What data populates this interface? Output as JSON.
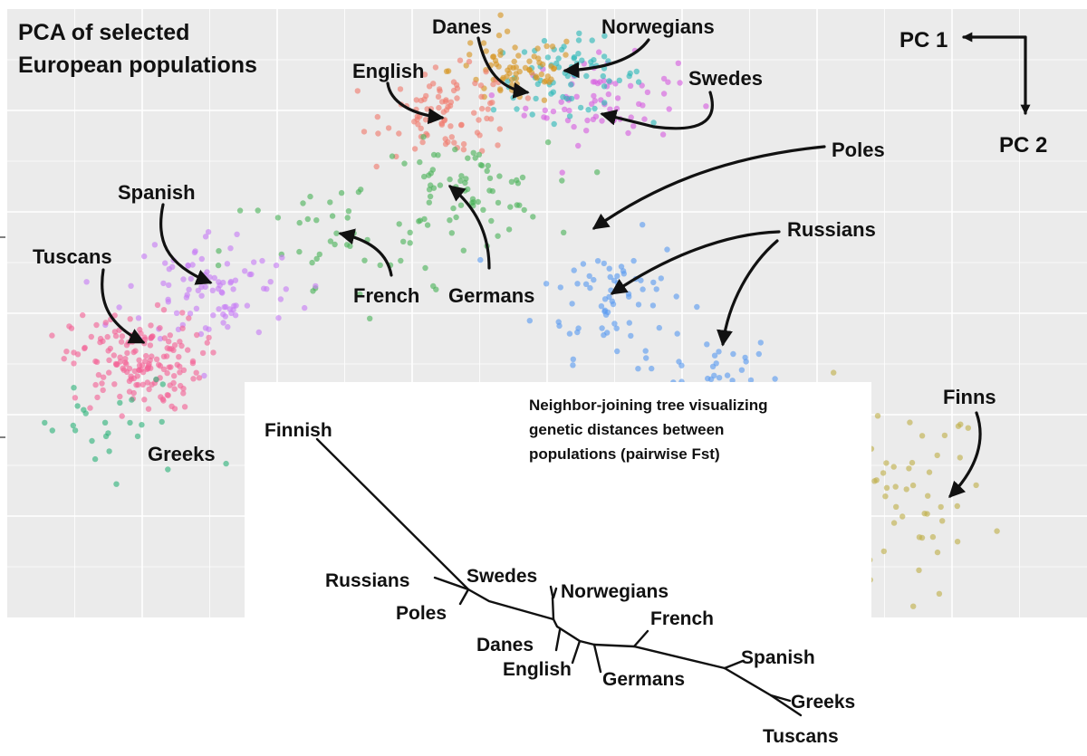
{
  "chart_data": [
    {
      "type": "scatter",
      "title": "PCA of selected European populations",
      "title_lines": [
        "PCA of selected",
        "European populations"
      ],
      "xlabel": "",
      "ylabel": "",
      "xlim": [
        0,
        1
      ],
      "ylim": [
        0,
        1
      ],
      "grid": true,
      "background": "#ebebeb",
      "legend": "none",
      "axes_note": {
        "pc1": "PC 1",
        "pc2": "PC 2"
      },
      "series": [
        {
          "name": "Finns",
          "color": "#c0b04a",
          "center": [
            0.8,
            0.19
          ],
          "spread": [
            0.055,
            0.085
          ],
          "n": 95,
          "jitter": 0.012
        },
        {
          "name": "Russians",
          "color": "#5b9bf0",
          "center": [
            0.645,
            0.4
          ],
          "spread": [
            0.035,
            0.035
          ],
          "n": 40
        },
        {
          "name": "Poles",
          "color": "#5b9bf0",
          "center": [
            0.56,
            0.53
          ],
          "spread": [
            0.035,
            0.05
          ],
          "n": 65
        },
        {
          "name": "Swedes",
          "color": "#d65de0",
          "center": [
            0.55,
            0.85
          ],
          "spread": [
            0.035,
            0.035
          ],
          "n": 70
        },
        {
          "name": "Norwegians",
          "color": "#2bb8b8",
          "center": [
            0.52,
            0.89
          ],
          "spread": [
            0.035,
            0.03
          ],
          "n": 70
        },
        {
          "name": "Danes",
          "color": "#d69520",
          "center": [
            0.47,
            0.9
          ],
          "spread": [
            0.03,
            0.03
          ],
          "n": 70
        },
        {
          "name": "English",
          "color": "#f07a6e",
          "center": [
            0.41,
            0.83
          ],
          "spread": [
            0.03,
            0.035
          ],
          "n": 90
        },
        {
          "name": "Germans",
          "color": "#4cb35a",
          "center": [
            0.42,
            0.7
          ],
          "spread": [
            0.04,
            0.04
          ],
          "n": 75
        },
        {
          "name": "French",
          "color": "#4cb35a",
          "center": [
            0.3,
            0.6
          ],
          "spread": [
            0.05,
            0.06
          ],
          "n": 40
        },
        {
          "name": "Spanish",
          "color": "#c77cf5",
          "center": [
            0.19,
            0.54
          ],
          "spread": [
            0.04,
            0.05
          ],
          "n": 95
        },
        {
          "name": "Tuscans",
          "color": "#f36296",
          "center": [
            0.12,
            0.42
          ],
          "spread": [
            0.03,
            0.04
          ],
          "n": 170
        },
        {
          "name": "Greeks",
          "color": "#2eb37a",
          "center": [
            0.1,
            0.3
          ],
          "spread": [
            0.045,
            0.05
          ],
          "n": 25
        }
      ]
    },
    {
      "type": "tree",
      "title": "Neighbor-joining tree visualizing genetic distances between populations (pairwise Fst)",
      "title_lines": [
        "Neighbor-joining tree visualizing",
        "genetic distances between",
        "populations (pairwise Fst)"
      ],
      "leaves": [
        "Finnish",
        "Russians",
        "Poles",
        "Swedes",
        "Norwegians",
        "Danes",
        "English",
        "Germans",
        "French",
        "Spanish",
        "Greeks",
        "Tuscans"
      ]
    }
  ],
  "annotations": {
    "pca_labels": [
      "Danes",
      "Norwegians",
      "English",
      "Swedes",
      "Poles",
      "Spanish",
      "Russians",
      "Tuscans",
      "French",
      "Germans",
      "Finns",
      "Greeks"
    ]
  }
}
